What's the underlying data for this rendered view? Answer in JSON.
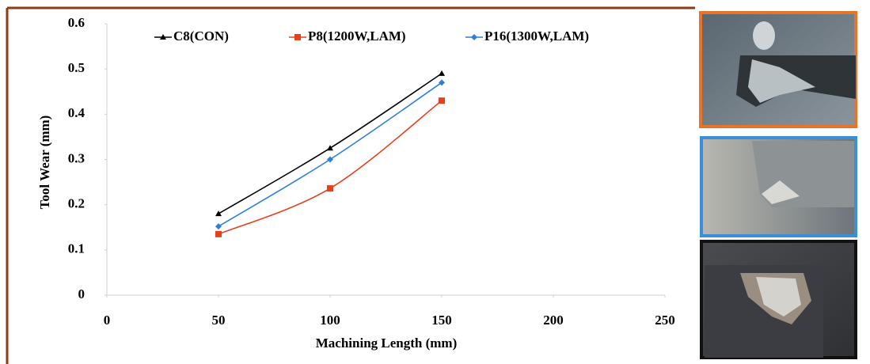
{
  "chart_data": {
    "type": "line",
    "x_label": "Machining Length (mm)",
    "y_label": "Tool Wear (mm)",
    "x": [
      50,
      100,
      150
    ],
    "series": [
      {
        "name": "C8(CON)",
        "color": "#000000",
        "marker": "triangle",
        "values": [
          0.18,
          0.325,
          0.49
        ]
      },
      {
        "name": "P8(1200W,LAM)",
        "color": "#e8401c",
        "marker": "square",
        "values": [
          0.135,
          0.236,
          0.43
        ]
      },
      {
        "name": "P16(1300W,LAM)",
        "color": "#2f7ed8",
        "marker": "diamond",
        "values": [
          0.152,
          0.3,
          0.47
        ]
      }
    ],
    "xlim": [
      0,
      250
    ],
    "xticks": [
      0,
      50,
      100,
      150,
      200,
      250
    ],
    "ylim": [
      0,
      0.6
    ],
    "yticks": [
      0,
      0.1,
      0.2,
      0.3,
      0.4,
      0.5,
      0.6
    ],
    "smooth": true,
    "legend": "top"
  }
}
